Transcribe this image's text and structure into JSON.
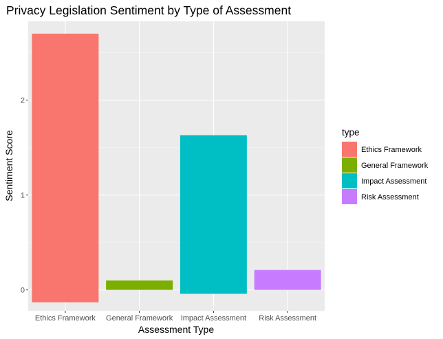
{
  "chart_data": {
    "type": "bar",
    "title": "Privacy Legislation Sentiment by Type of Assessment",
    "xlabel": "Assessment Type",
    "ylabel": "Sentiment Score",
    "categories": [
      "Ethics Framework",
      "General Framework",
      "Impact Assessment",
      "Risk Assessment"
    ],
    "bars": [
      {
        "category": "Ethics Framework",
        "ymin": -0.13,
        "ymax": 2.7,
        "color": "#F8766D"
      },
      {
        "category": "General Framework",
        "ymin": 0.0,
        "ymax": 0.1,
        "color": "#7CAE00"
      },
      {
        "category": "Impact Assessment",
        "ymin": -0.04,
        "ymax": 1.63,
        "color": "#00BFC4"
      },
      {
        "category": "Risk Assessment",
        "ymin": 0.0,
        "ymax": 0.21,
        "color": "#C77CFF"
      }
    ],
    "yticks": [
      0,
      1,
      2
    ],
    "ylim": [
      -0.22,
      2.83
    ],
    "grid": true,
    "legend": {
      "title": "type",
      "position": "right",
      "entries": [
        {
          "label": "Ethics Framework",
          "color": "#F8766D"
        },
        {
          "label": "General Framework",
          "color": "#7CAE00"
        },
        {
          "label": "Impact Assessment",
          "color": "#00BFC4"
        },
        {
          "label": "Risk Assessment",
          "color": "#C77CFF"
        }
      ]
    },
    "colors": {
      "panel_background": "#EBEBEB",
      "grid_major": "#FFFFFF",
      "grid_minor": "#F5F5F5",
      "tick": "#333333"
    }
  }
}
